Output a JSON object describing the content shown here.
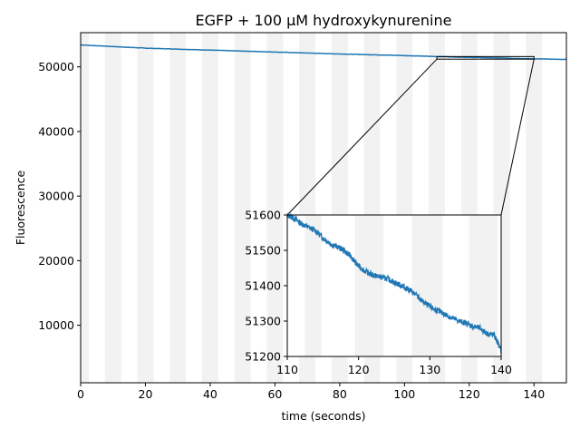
{
  "chart_data": {
    "type": "line",
    "title": "EGFP + 100 µM hydroxykynurenine",
    "xlabel": "time (seconds)",
    "ylabel": "Fluorescence",
    "xlim": [
      0,
      150
    ],
    "ylim": [
      1100,
      55300
    ],
    "xticks": [
      0,
      20,
      40,
      60,
      80,
      100,
      120,
      140
    ],
    "yticks": [
      10000,
      20000,
      30000,
      40000,
      50000
    ],
    "line_color": "#1f77b4",
    "stripe_color": "#f2f2f2",
    "stripes": [
      [
        0,
        2.5
      ],
      [
        7.5,
        12.5
      ],
      [
        17.5,
        22.5
      ],
      [
        27.5,
        32.5
      ],
      [
        37.5,
        42.5
      ],
      [
        47.5,
        52.5
      ],
      [
        57.5,
        62.5
      ],
      [
        67.5,
        72.5
      ],
      [
        77.5,
        82.5
      ],
      [
        87.5,
        92.5
      ],
      [
        97.5,
        102.5
      ],
      [
        107.5,
        112.5
      ],
      [
        117.5,
        122.5
      ],
      [
        127.5,
        132.5
      ],
      [
        137.5,
        142.5
      ]
    ],
    "series": [
      {
        "x": [
          0,
          10,
          20,
          30,
          40,
          50,
          60,
          70,
          80,
          90,
          100,
          110,
          120,
          130,
          140,
          150
        ],
        "values": [
          53400,
          53150,
          52900,
          52750,
          52600,
          52450,
          52300,
          52150,
          52000,
          51880,
          51750,
          51600,
          51480,
          51370,
          51250,
          51150
        ]
      }
    ],
    "inset": {
      "xlim": [
        110,
        140
      ],
      "ylim": [
        51200,
        51600
      ],
      "xticks": [
        110,
        120,
        130,
        140
      ],
      "yticks": [
        51200,
        51300,
        51400,
        51500,
        51600
      ],
      "stripes": [
        [
          112.5,
          114.8
        ],
        [
          119.5,
          123.5
        ],
        [
          127.5,
          131.8
        ],
        [
          135.5,
          139.5
        ]
      ],
      "series": [
        {
          "x": [
            110,
            111,
            112,
            113,
            114,
            115,
            116,
            117,
            118,
            119,
            120,
            121,
            122,
            123,
            124,
            125,
            126,
            127,
            128,
            129,
            130,
            131,
            132,
            133,
            134,
            135,
            136,
            137,
            138,
            139,
            139.5,
            140
          ],
          "values": [
            51600,
            51590,
            51575,
            51565,
            51555,
            51535,
            51520,
            51510,
            51500,
            51480,
            51455,
            51440,
            51430,
            51425,
            51420,
            51410,
            51400,
            51390,
            51375,
            51355,
            51340,
            51330,
            51320,
            51310,
            51300,
            51295,
            51285,
            51280,
            51265,
            51260,
            51240,
            51215
          ]
        }
      ]
    }
  }
}
